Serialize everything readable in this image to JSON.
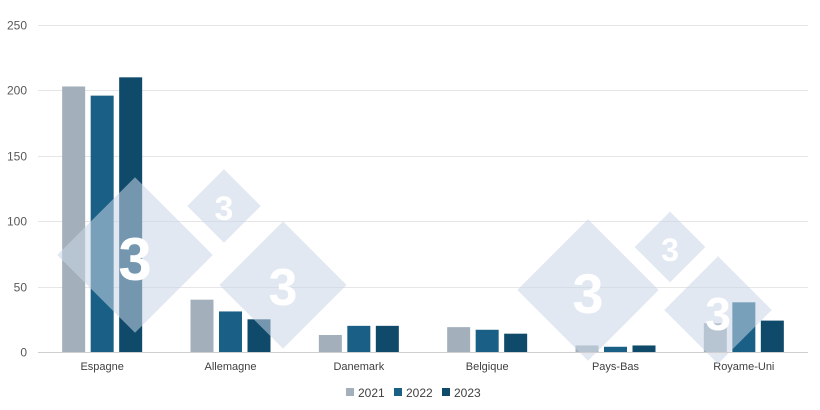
{
  "chart_data": {
    "type": "bar",
    "categories": [
      "Espagne",
      "Allemagne",
      "Danemark",
      "Belgique",
      "Pays-Bas",
      "Royame-Uni"
    ],
    "series": [
      {
        "name": "2021",
        "color": "#a3afba",
        "values": [
          203,
          40,
          13,
          19,
          5,
          22
        ]
      },
      {
        "name": "2022",
        "color": "#1a5f85",
        "values": [
          196,
          31,
          20,
          17,
          4,
          38
        ]
      },
      {
        "name": "2023",
        "color": "#0f4a6a",
        "values": [
          210,
          25,
          20,
          14,
          5,
          24
        ]
      }
    ],
    "ylim": [
      0,
      250
    ],
    "yticks": [
      0,
      50,
      100,
      150,
      200,
      250
    ],
    "grid": true,
    "legend": "bottom",
    "watermark_icon": "333-logo"
  }
}
